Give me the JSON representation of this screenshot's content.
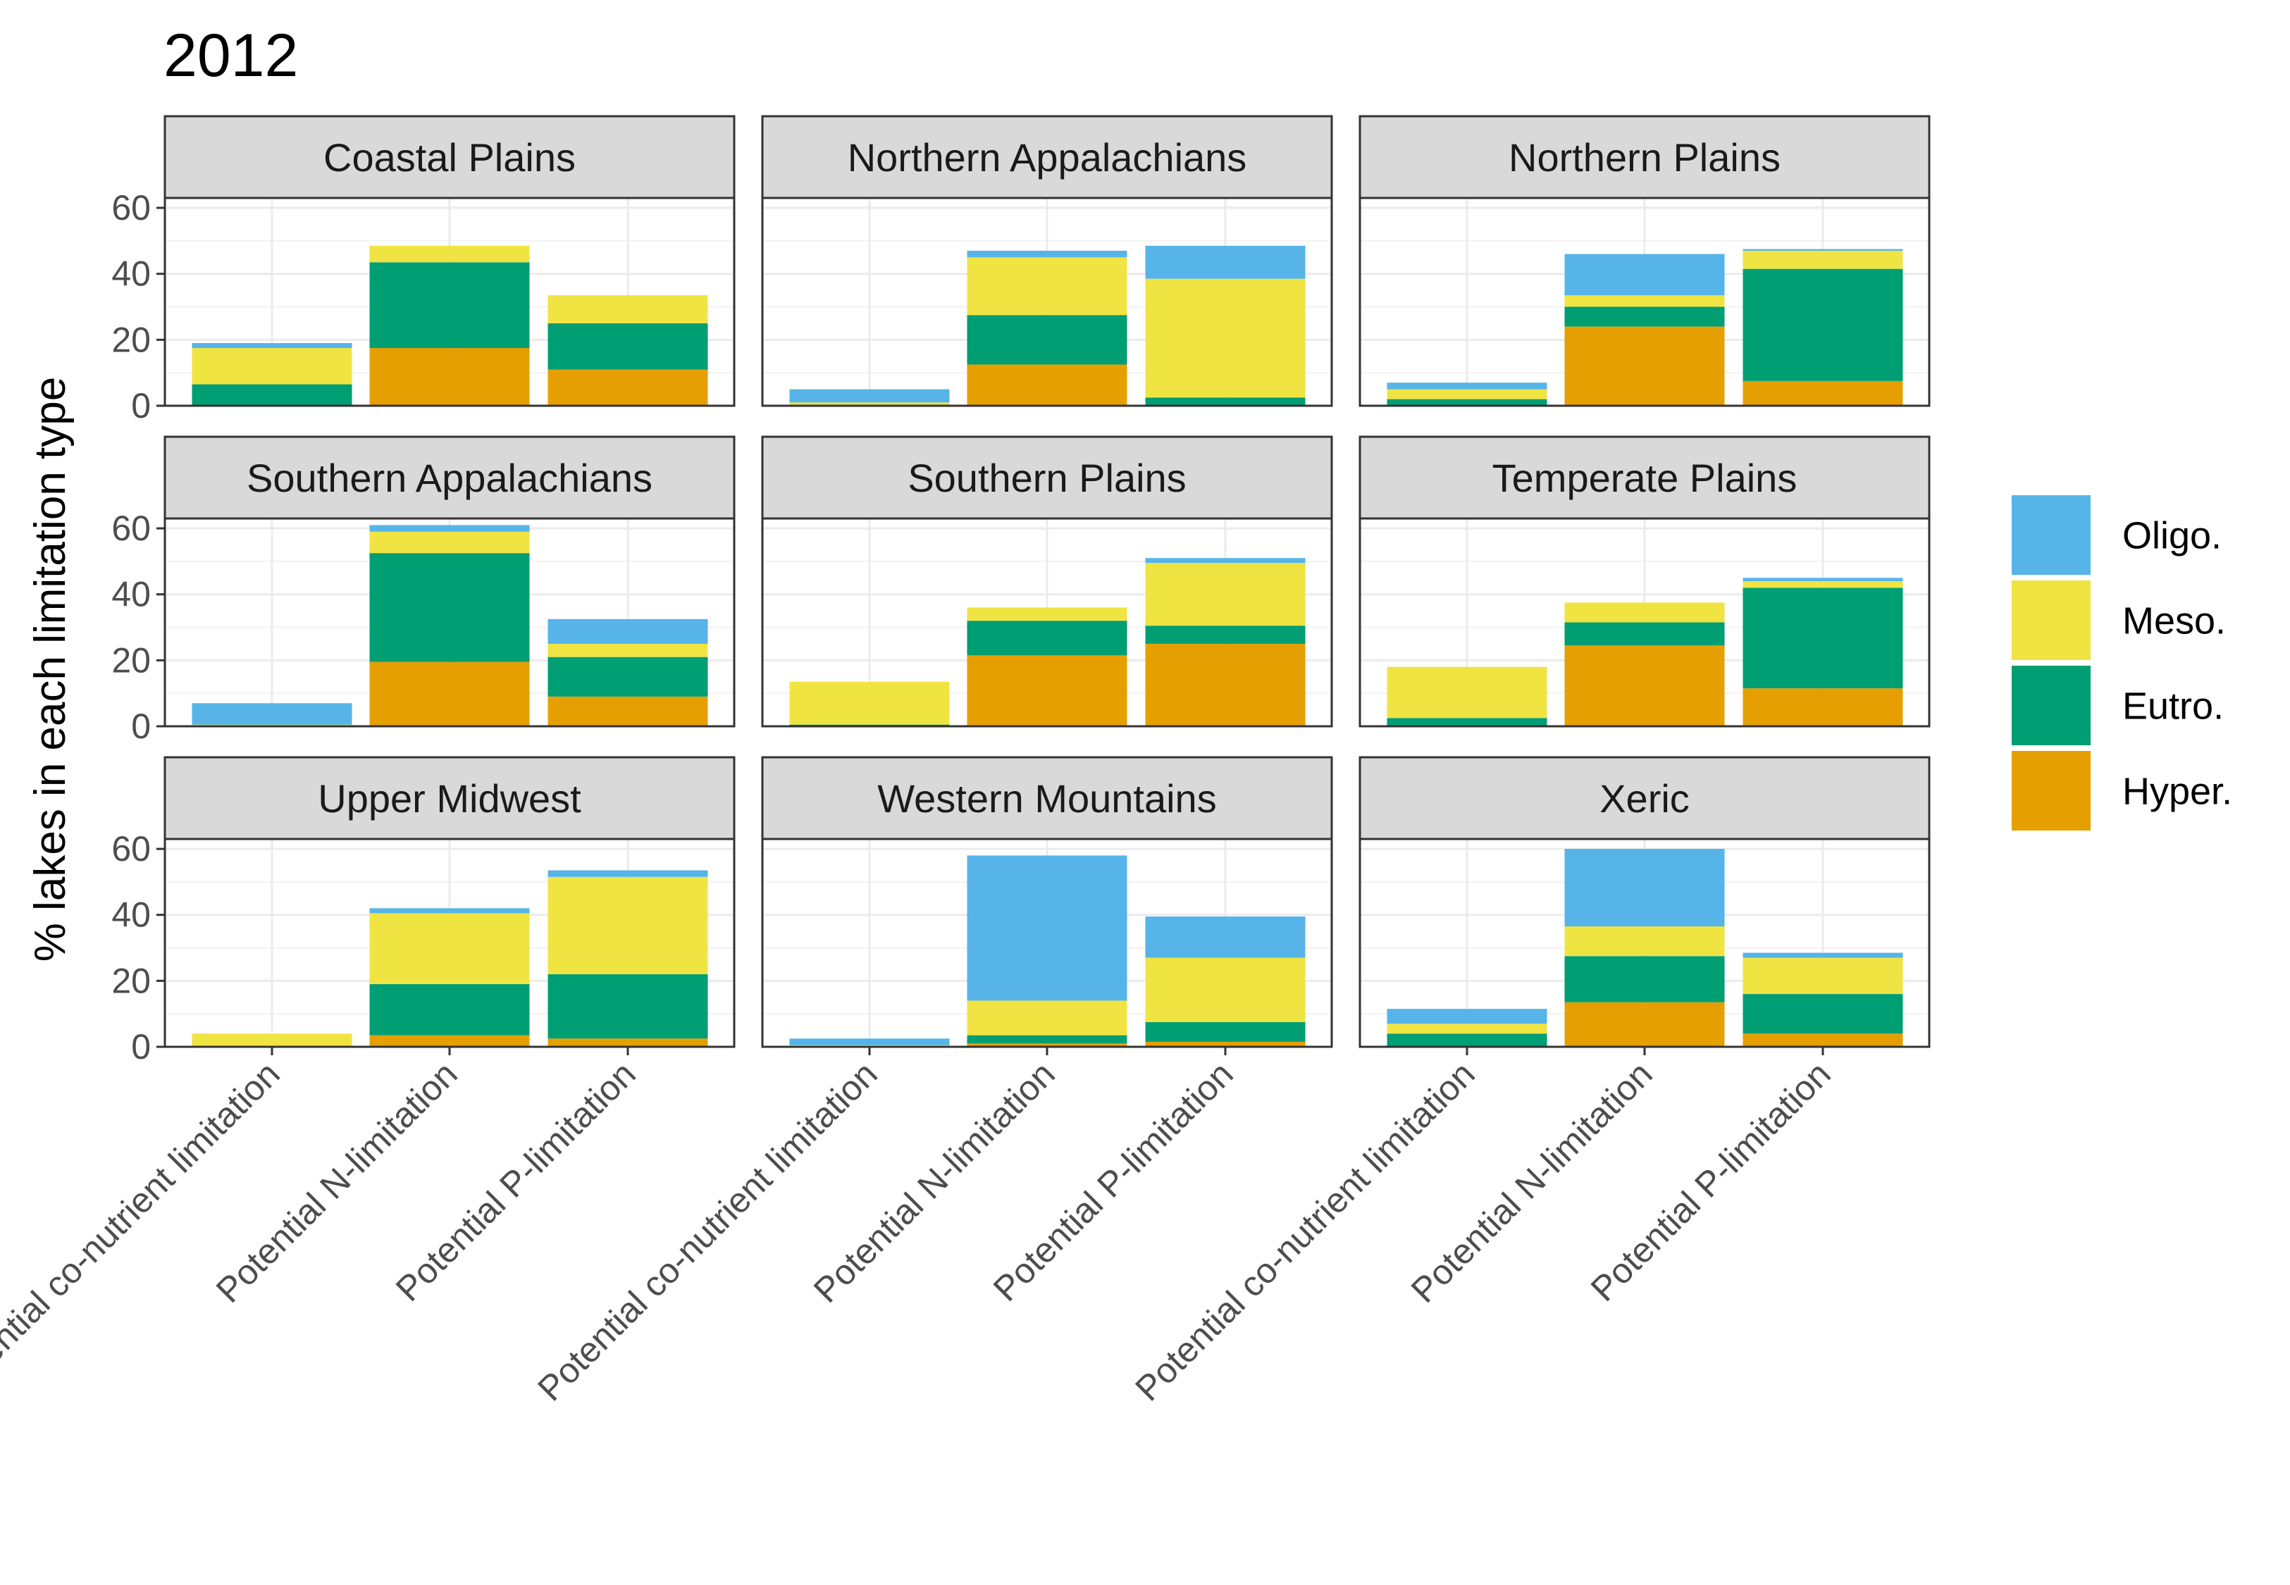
{
  "chart_data": {
    "type": "bar",
    "stacked": true,
    "title": "2012",
    "ylabel": "% lakes in each limitation type",
    "xlabel": "",
    "ylim": [
      0,
      63
    ],
    "yticks": [
      0,
      20,
      40,
      60
    ],
    "grid": true,
    "legend_position": "right",
    "categories": [
      "Potential co-nutrient limitation",
      "Potential N-limitation",
      "Potential P-limitation"
    ],
    "series_order_bottom_to_top": [
      "Hyper.",
      "Eutro.",
      "Meso.",
      "Oligo."
    ],
    "legend": [
      {
        "name": "Oligo.",
        "color": "#56B4E9"
      },
      {
        "name": "Meso.",
        "color": "#F0E442"
      },
      {
        "name": "Eutro.",
        "color": "#009E73"
      },
      {
        "name": "Hyper.",
        "color": "#E69F00"
      }
    ],
    "panels": [
      {
        "name": "Coastal Plains",
        "values": [
          {
            "Hyper.": 0,
            "Eutro.": 6.5,
            "Meso.": 11,
            "Oligo.": 1.5
          },
          {
            "Hyper.": 17.5,
            "Eutro.": 26,
            "Meso.": 5,
            "Oligo.": 0
          },
          {
            "Hyper.": 11,
            "Eutro.": 14,
            "Meso.": 8.5,
            "Oligo.": 0
          }
        ]
      },
      {
        "name": "Northern Appalachians",
        "values": [
          {
            "Hyper.": 0,
            "Eutro.": 0,
            "Meso.": 1,
            "Oligo.": 4
          },
          {
            "Hyper.": 12.5,
            "Eutro.": 15,
            "Meso.": 17.5,
            "Oligo.": 2
          },
          {
            "Hyper.": 0,
            "Eutro.": 2.5,
            "Meso.": 36,
            "Oligo.": 10
          }
        ]
      },
      {
        "name": "Northern Plains",
        "values": [
          {
            "Hyper.": 0,
            "Eutro.": 2,
            "Meso.": 3,
            "Oligo.": 2
          },
          {
            "Hyper.": 24,
            "Eutro.": 6,
            "Meso.": 3.5,
            "Oligo.": 12.5
          },
          {
            "Hyper.": 7.5,
            "Eutro.": 34,
            "Meso.": 5.5,
            "Oligo.": 0.5
          }
        ]
      },
      {
        "name": "Southern Appalachians",
        "values": [
          {
            "Hyper.": 0,
            "Eutro.": 0,
            "Meso.": 0.5,
            "Oligo.": 6.5
          },
          {
            "Hyper.": 19.5,
            "Eutro.": 33,
            "Meso.": 6.5,
            "Oligo.": 2
          },
          {
            "Hyper.": 9,
            "Eutro.": 12,
            "Meso.": 4,
            "Oligo.": 7.5
          }
        ]
      },
      {
        "name": "Southern Plains",
        "values": [
          {
            "Hyper.": 0,
            "Eutro.": 0.5,
            "Meso.": 13,
            "Oligo.": 0
          },
          {
            "Hyper.": 21.5,
            "Eutro.": 10.5,
            "Meso.": 4,
            "Oligo.": 0
          },
          {
            "Hyper.": 25,
            "Eutro.": 5.5,
            "Meso.": 19,
            "Oligo.": 1.5
          }
        ]
      },
      {
        "name": "Temperate Plains",
        "values": [
          {
            "Hyper.": 0,
            "Eutro.": 2.5,
            "Meso.": 15.5,
            "Oligo.": 0
          },
          {
            "Hyper.": 24.5,
            "Eutro.": 7,
            "Meso.": 6,
            "Oligo.": 0
          },
          {
            "Hyper.": 11.5,
            "Eutro.": 30.5,
            "Meso.": 2,
            "Oligo.": 1
          }
        ]
      },
      {
        "name": "Upper Midwest",
        "values": [
          {
            "Hyper.": 0,
            "Eutro.": 0,
            "Meso.": 4,
            "Oligo.": 0
          },
          {
            "Hyper.": 3.5,
            "Eutro.": 15.5,
            "Meso.": 21.5,
            "Oligo.": 1.5
          },
          {
            "Hyper.": 2.5,
            "Eutro.": 19.5,
            "Meso.": 29.5,
            "Oligo.": 2
          }
        ]
      },
      {
        "name": "Western Mountains",
        "values": [
          {
            "Hyper.": 0,
            "Eutro.": 0,
            "Meso.": 0.5,
            "Oligo.": 2
          },
          {
            "Hyper.": 1,
            "Eutro.": 2.5,
            "Meso.": 10.5,
            "Oligo.": 44
          },
          {
            "Hyper.": 1.5,
            "Eutro.": 6,
            "Meso.": 19.5,
            "Oligo.": 12.5
          }
        ]
      },
      {
        "name": "Xeric",
        "values": [
          {
            "Hyper.": 0,
            "Eutro.": 4,
            "Meso.": 3,
            "Oligo.": 4.5
          },
          {
            "Hyper.": 13.5,
            "Eutro.": 14,
            "Meso.": 9,
            "Oligo.": 23.5
          },
          {
            "Hyper.": 4,
            "Eutro.": 12,
            "Meso.": 11,
            "Oligo.": 1.5
          }
        ]
      }
    ]
  }
}
